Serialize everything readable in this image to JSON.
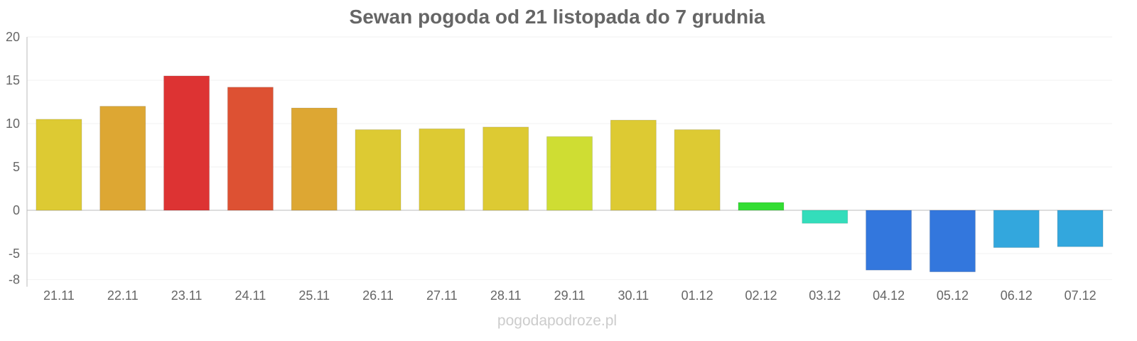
{
  "chart_data": {
    "type": "bar",
    "title": "Sewan pogoda od 21 listopada do 7 grudnia",
    "xlabel": "",
    "ylabel": "",
    "ylim": [
      -8,
      20
    ],
    "yticks": [
      20,
      15,
      10,
      5,
      0,
      -5,
      -8
    ],
    "grid": true,
    "categories": [
      "21.11",
      "22.11",
      "23.11",
      "24.11",
      "25.11",
      "26.11",
      "27.11",
      "28.11",
      "29.11",
      "30.11",
      "01.12",
      "02.12",
      "03.12",
      "04.12",
      "05.12",
      "06.12",
      "07.12"
    ],
    "values": [
      10.5,
      12.0,
      15.5,
      14.2,
      11.8,
      9.3,
      9.4,
      9.6,
      8.5,
      10.4,
      9.3,
      0.9,
      -1.5,
      -6.9,
      -7.1,
      -4.3,
      -4.2
    ],
    "colors": [
      "#ddca33",
      "#dda733",
      "#dd3333",
      "#dd5133",
      "#dda733",
      "#ddca33",
      "#ddca33",
      "#ddca33",
      "#cfdd33",
      "#ddca33",
      "#ddca33",
      "#33dd33",
      "#33ddbb",
      "#3377dd",
      "#3377dd",
      "#33a7dd",
      "#33a7dd"
    ]
  },
  "credit": "pogodapodroze.pl"
}
